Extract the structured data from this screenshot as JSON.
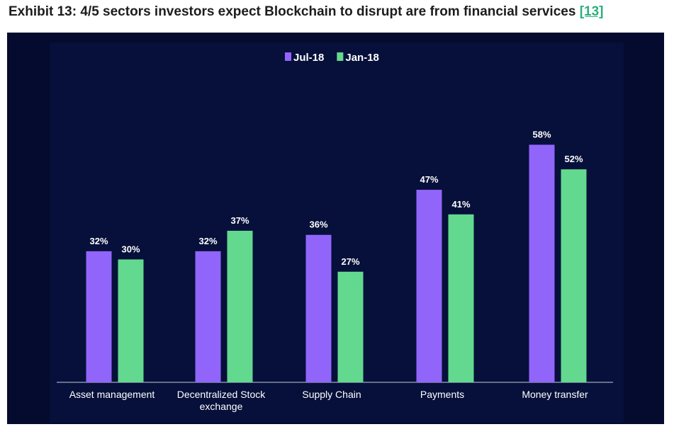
{
  "header": {
    "title": "Exhibit 13: 4/5 sectors investors expect Blockchain to disrupt are from financial services",
    "ref": "[13]",
    "ref_color": "#2bb07c"
  },
  "chart_data": {
    "type": "bar",
    "title": "",
    "xlabel": "",
    "ylabel": "",
    "ylim": [
      0,
      70
    ],
    "grid": false,
    "legend_position": "top-center",
    "value_format": "percent",
    "categories": [
      [
        "Asset management"
      ],
      [
        "Decentralized Stock",
        "exchange"
      ],
      [
        "Supply Chain"
      ],
      [
        "Payments"
      ],
      [
        "Money transfer"
      ]
    ],
    "series": [
      {
        "name": "Jul-18",
        "color": "#9265fa",
        "values": [
          32,
          32,
          36,
          47,
          58
        ]
      },
      {
        "name": "Jan-18",
        "color": "#63d98f",
        "values": [
          30,
          37,
          27,
          41,
          52
        ]
      }
    ]
  }
}
